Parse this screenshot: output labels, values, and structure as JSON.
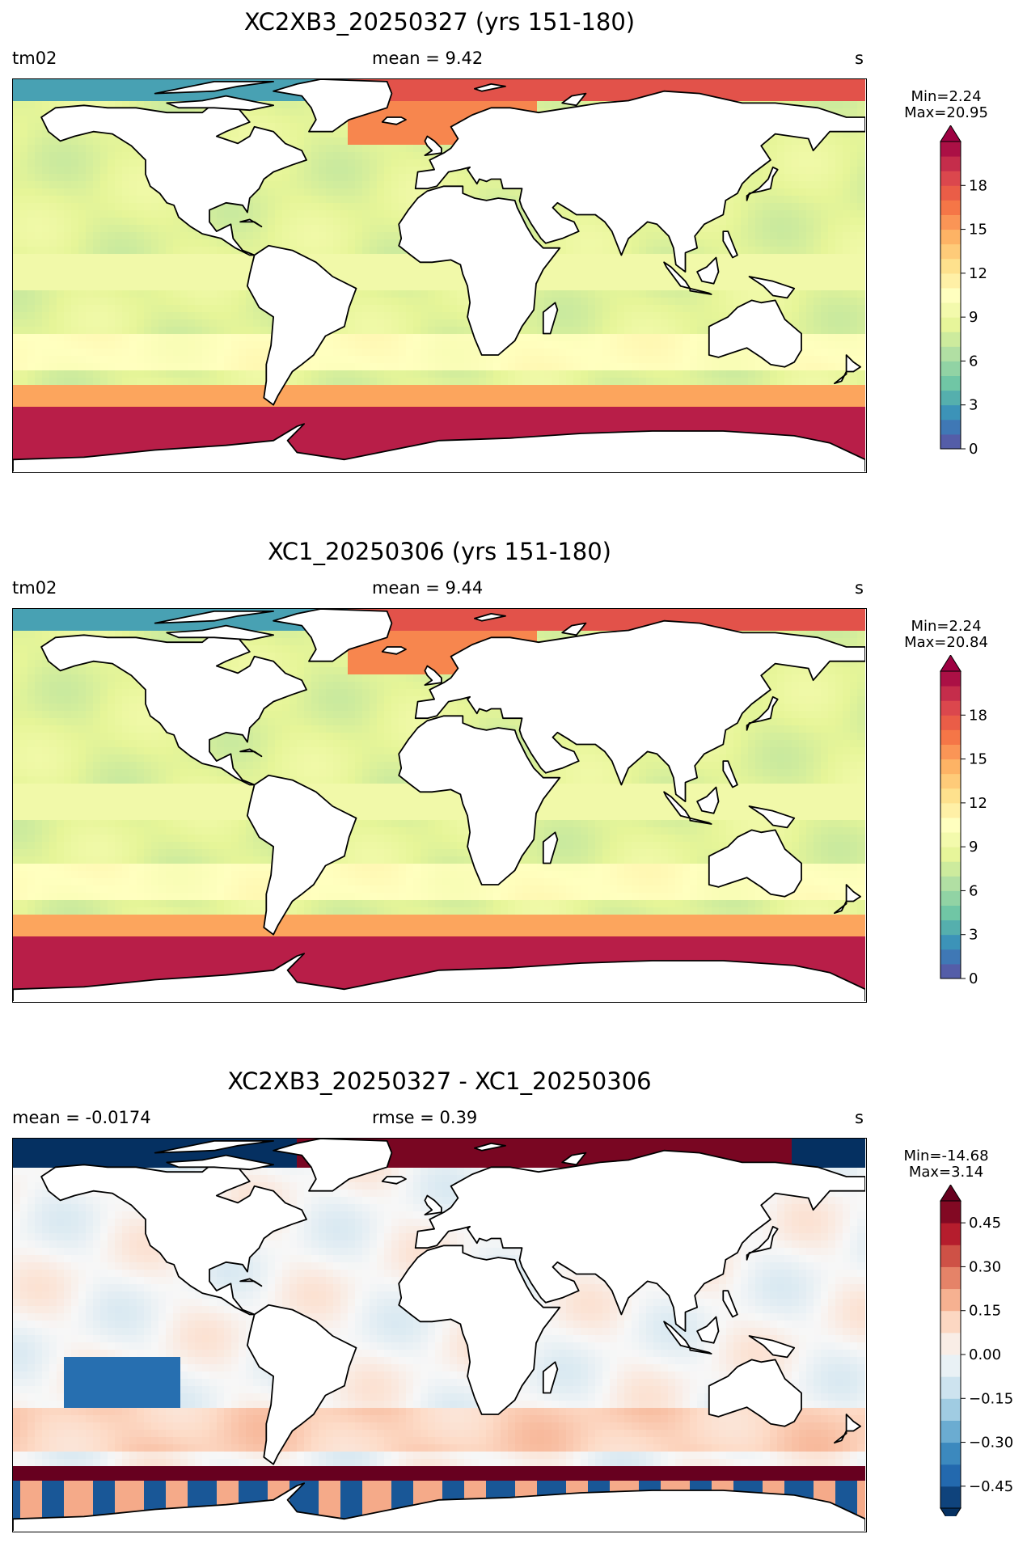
{
  "panels": [
    {
      "title": "XC2XB3_20250327 (yrs 151-180)",
      "left_label": "tm02",
      "center_label": "mean = 9.42",
      "right_label": "s",
      "min_label": "Min=2.24",
      "max_label": "Max=20.95",
      "colormap": "Spectral_r",
      "colorbar_ticks": [
        "0",
        "3",
        "6",
        "9",
        "12",
        "15",
        "18"
      ],
      "colorbar_range": [
        0,
        21
      ]
    },
    {
      "title": "XC1_20250306 (yrs 151-180)",
      "left_label": "tm02",
      "center_label": "mean = 9.44",
      "right_label": "s",
      "min_label": "Min=2.24",
      "max_label": "Max=20.84",
      "colormap": "Spectral_r",
      "colorbar_ticks": [
        "0",
        "3",
        "6",
        "9",
        "12",
        "15",
        "18"
      ],
      "colorbar_range": [
        0,
        21
      ]
    },
    {
      "title": "XC2XB3_20250327 - XC1_20250306",
      "left_label": "mean = -0.0174",
      "center_label": "rmse = 0.39",
      "right_label": "s",
      "min_label": "Min=-14.68",
      "max_label": "Max=3.14",
      "colormap": "RdBu_r",
      "colorbar_ticks": [
        "0.45",
        "0.30",
        "0.15",
        "0.00",
        "−0.15",
        "−0.30",
        "−0.45"
      ],
      "colorbar_range": [
        -0.525,
        0.525
      ]
    }
  ]
}
